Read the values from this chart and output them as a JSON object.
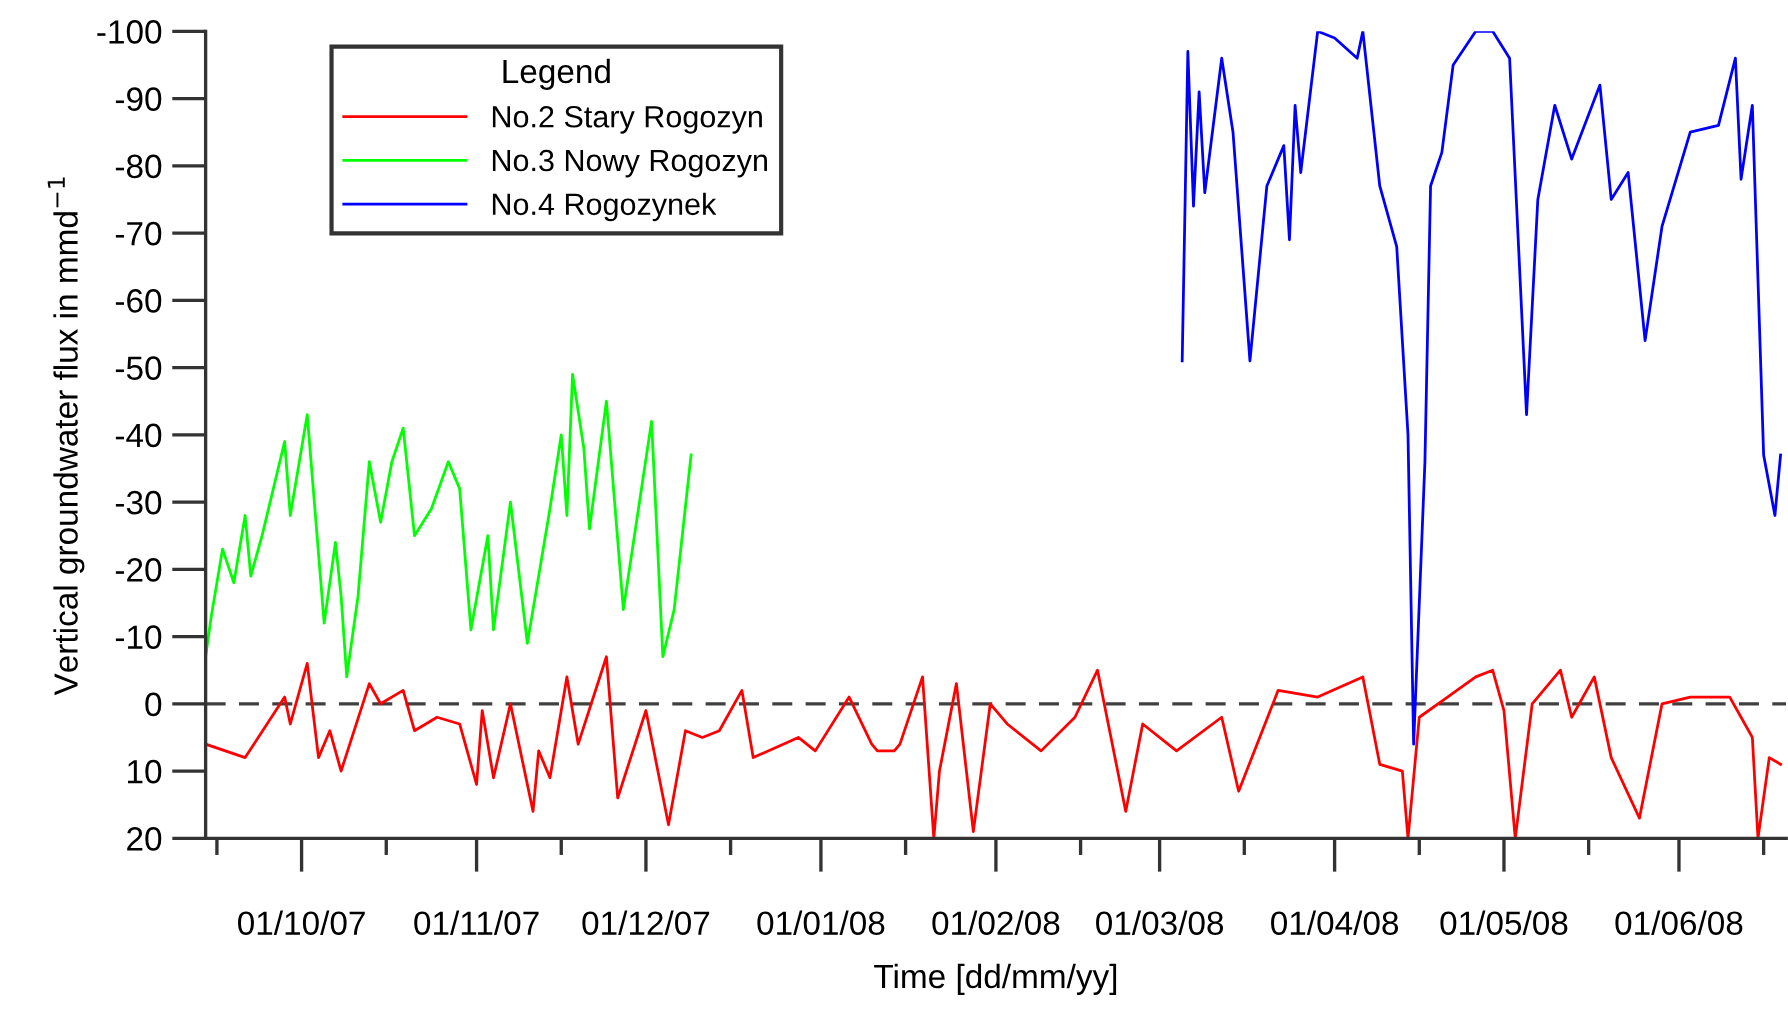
{
  "chart_data": {
    "type": "line",
    "xlabel": "Time [dd/mm/yy]",
    "ylabel": "Vertical groundwater flux in mmd$^{−1}$",
    "legend_title": "Legend",
    "legend": "top left",
    "grid": false,
    "marker": "none",
    "line_style": "solid",
    "xlim": [
      "2007-09-14",
      "2008-06-20"
    ],
    "xticks": [
      {
        "value": "2007-09-16",
        "label": null
      },
      {
        "value": "2007-10-01",
        "label": "01/10/07"
      },
      {
        "value": "2007-10-16",
        "label": null
      },
      {
        "value": "2007-11-01",
        "label": "01/11/07"
      },
      {
        "value": "2007-11-16",
        "label": null
      },
      {
        "value": "2007-12-01",
        "label": "01/12/07"
      },
      {
        "value": "2007-12-16",
        "label": null
      },
      {
        "value": "2008-01-01",
        "label": "01/01/08"
      },
      {
        "value": "2008-01-16",
        "label": null
      },
      {
        "value": "2008-02-01",
        "label": "01/02/08"
      },
      {
        "value": "2008-02-16",
        "label": null
      },
      {
        "value": "2008-03-01",
        "label": "01/03/08"
      },
      {
        "value": "2008-03-16",
        "label": null
      },
      {
        "value": "2008-04-01",
        "label": "01/04/08"
      },
      {
        "value": "2008-04-16",
        "label": null
      },
      {
        "value": "2008-05-01",
        "label": "01/05/08"
      },
      {
        "value": "2008-05-16",
        "label": null
      },
      {
        "value": "2008-06-01",
        "label": "01/06/08"
      },
      {
        "value": "2008-06-16",
        "label": null
      }
    ],
    "ylim": [
      20,
      -100
    ],
    "yticks": [
      -100,
      -90,
      -80,
      -70,
      -60,
      -50,
      -40,
      -30,
      -20,
      -10,
      0,
      10,
      20
    ],
    "ref_lines": [
      {
        "axis": "y",
        "value": 0,
        "color": "#404040",
        "line_style": "dashed"
      }
    ],
    "series": [
      {
        "name": "No.2 Stary Rogozyn",
        "color": "#ff0000",
        "x": [
          "2007-09-14",
          "2007-09-21",
          "2007-09-28",
          "2007-09-29",
          "2007-10-02",
          "2007-10-04",
          "2007-10-06",
          "2007-10-08",
          "2007-10-13",
          "2007-10-15",
          "2007-10-19",
          "2007-10-21",
          "2007-10-25",
          "2007-10-29",
          "2007-11-01",
          "2007-11-02",
          "2007-11-04",
          "2007-11-07",
          "2007-11-11",
          "2007-11-12",
          "2007-11-14",
          "2007-11-17",
          "2007-11-19",
          "2007-11-24",
          "2007-11-26",
          "2007-12-01",
          "2007-12-05",
          "2007-12-08",
          "2007-12-11",
          "2007-12-14",
          "2007-12-18",
          "2007-12-20",
          "2007-12-28",
          "2007-12-31",
          "2008-01-06",
          "2008-01-10",
          "2008-01-11",
          "2008-01-14",
          "2008-01-15",
          "2008-01-19",
          "2008-01-21",
          "2008-01-22",
          "2008-01-25",
          "2008-01-28",
          "2008-01-31",
          "2008-02-03",
          "2008-02-09",
          "2008-02-15",
          "2008-02-19",
          "2008-02-24",
          "2008-02-27",
          "2008-03-04",
          "2008-03-12",
          "2008-03-15",
          "2008-03-22",
          "2008-03-29",
          "2008-04-06",
          "2008-04-09",
          "2008-04-13",
          "2008-04-14",
          "2008-04-16",
          "2008-04-21",
          "2008-04-26",
          "2008-04-29",
          "2008-05-01",
          "2008-05-03",
          "2008-05-06",
          "2008-05-11",
          "2008-05-13",
          "2008-05-17",
          "2008-05-20",
          "2008-05-25",
          "2008-05-29",
          "2008-06-03",
          "2008-06-10",
          "2008-06-12",
          "2008-06-14",
          "2008-06-15",
          "2008-06-17",
          "2008-06-19"
        ],
        "values": [
          6,
          8,
          -1,
          3,
          -6,
          8,
          4,
          10,
          -3,
          0,
          -2,
          4,
          2,
          3,
          12,
          1,
          11,
          0,
          16,
          7,
          11,
          -4,
          6,
          -7,
          14,
          1,
          18,
          4,
          5,
          4,
          -2,
          8,
          5,
          7,
          -1,
          6,
          7,
          7,
          6,
          -4,
          20,
          10,
          -3,
          19,
          0,
          3,
          7,
          2,
          -5,
          16,
          3,
          7,
          2,
          13,
          -2,
          -1,
          -4,
          9,
          10,
          20,
          2,
          -1,
          -4,
          -5,
          1,
          20,
          0,
          -5,
          2,
          -4,
          8,
          17,
          0,
          -1,
          -1,
          2,
          5,
          20,
          8,
          9
        ]
      },
      {
        "name": "No.3 Nowy Rogozyn",
        "color": "#00ff00",
        "x": [
          "2007-09-14",
          "2007-09-15",
          "2007-09-17",
          "2007-09-19",
          "2007-09-21",
          "2007-09-22",
          "2007-09-24",
          "2007-09-28",
          "2007-09-29",
          "2007-10-02",
          "2007-10-05",
          "2007-10-07",
          "2007-10-08",
          "2007-10-09",
          "2007-10-11",
          "2007-10-13",
          "2007-10-15",
          "2007-10-17",
          "2007-10-19",
          "2007-10-21",
          "2007-10-24",
          "2007-10-27",
          "2007-10-29",
          "2007-10-31",
          "2007-11-03",
          "2007-11-04",
          "2007-11-07",
          "2007-11-10",
          "2007-11-14",
          "2007-11-16",
          "2007-11-17",
          "2007-11-18",
          "2007-11-20",
          "2007-11-21",
          "2007-11-24",
          "2007-11-27",
          "2007-12-02",
          "2007-12-04",
          "2007-12-06",
          "2007-12-09"
        ],
        "values": [
          -7,
          -13,
          -23,
          -18,
          -28,
          -19,
          -25,
          -39,
          -28,
          -43,
          -12,
          -24,
          -16,
          -4,
          -16,
          -36,
          -27,
          -36,
          -41,
          -25,
          -29,
          -36,
          -32,
          -11,
          -25,
          -11,
          -30,
          -9,
          -29,
          -40,
          -28,
          -49,
          -38,
          -26,
          -45,
          -14,
          -42,
          -7,
          -14,
          -37
        ]
      },
      {
        "name": "No.4 Rogozynek",
        "color": "#0000ff",
        "x": [
          "2008-03-05",
          "2008-03-06",
          "2008-03-07",
          "2008-03-08",
          "2008-03-09",
          "2008-03-12",
          "2008-03-14",
          "2008-03-17",
          "2008-03-20",
          "2008-03-23",
          "2008-03-24",
          "2008-03-25",
          "2008-03-26",
          "2008-03-29",
          "2008-04-01",
          "2008-04-05",
          "2008-04-06",
          "2008-04-09",
          "2008-04-12",
          "2008-04-14",
          "2008-04-15",
          "2008-04-17",
          "2008-04-18",
          "2008-04-20",
          "2008-04-22",
          "2008-04-26",
          "2008-04-29",
          "2008-05-02",
          "2008-05-05",
          "2008-05-07",
          "2008-05-10",
          "2008-05-13",
          "2008-05-18",
          "2008-05-20",
          "2008-05-23",
          "2008-05-26",
          "2008-05-29",
          "2008-06-03",
          "2008-06-08",
          "2008-06-11",
          "2008-06-12",
          "2008-06-14",
          "2008-06-16",
          "2008-06-18",
          "2008-06-19"
        ],
        "values": [
          -51,
          -97,
          -74,
          -91,
          -76,
          -96,
          -85,
          -51,
          -77,
          -83,
          -69,
          -89,
          -79,
          -100,
          -99,
          -96,
          -100,
          -77,
          -68,
          -40,
          6,
          -36,
          -77,
          -82,
          -95,
          -100,
          -100,
          -96,
          -43,
          -75,
          -89,
          -81,
          -92,
          -75,
          -79,
          -54,
          -71,
          -85,
          -86,
          -96,
          -78,
          -89,
          -37,
          -28,
          -37
        ]
      }
    ]
  }
}
